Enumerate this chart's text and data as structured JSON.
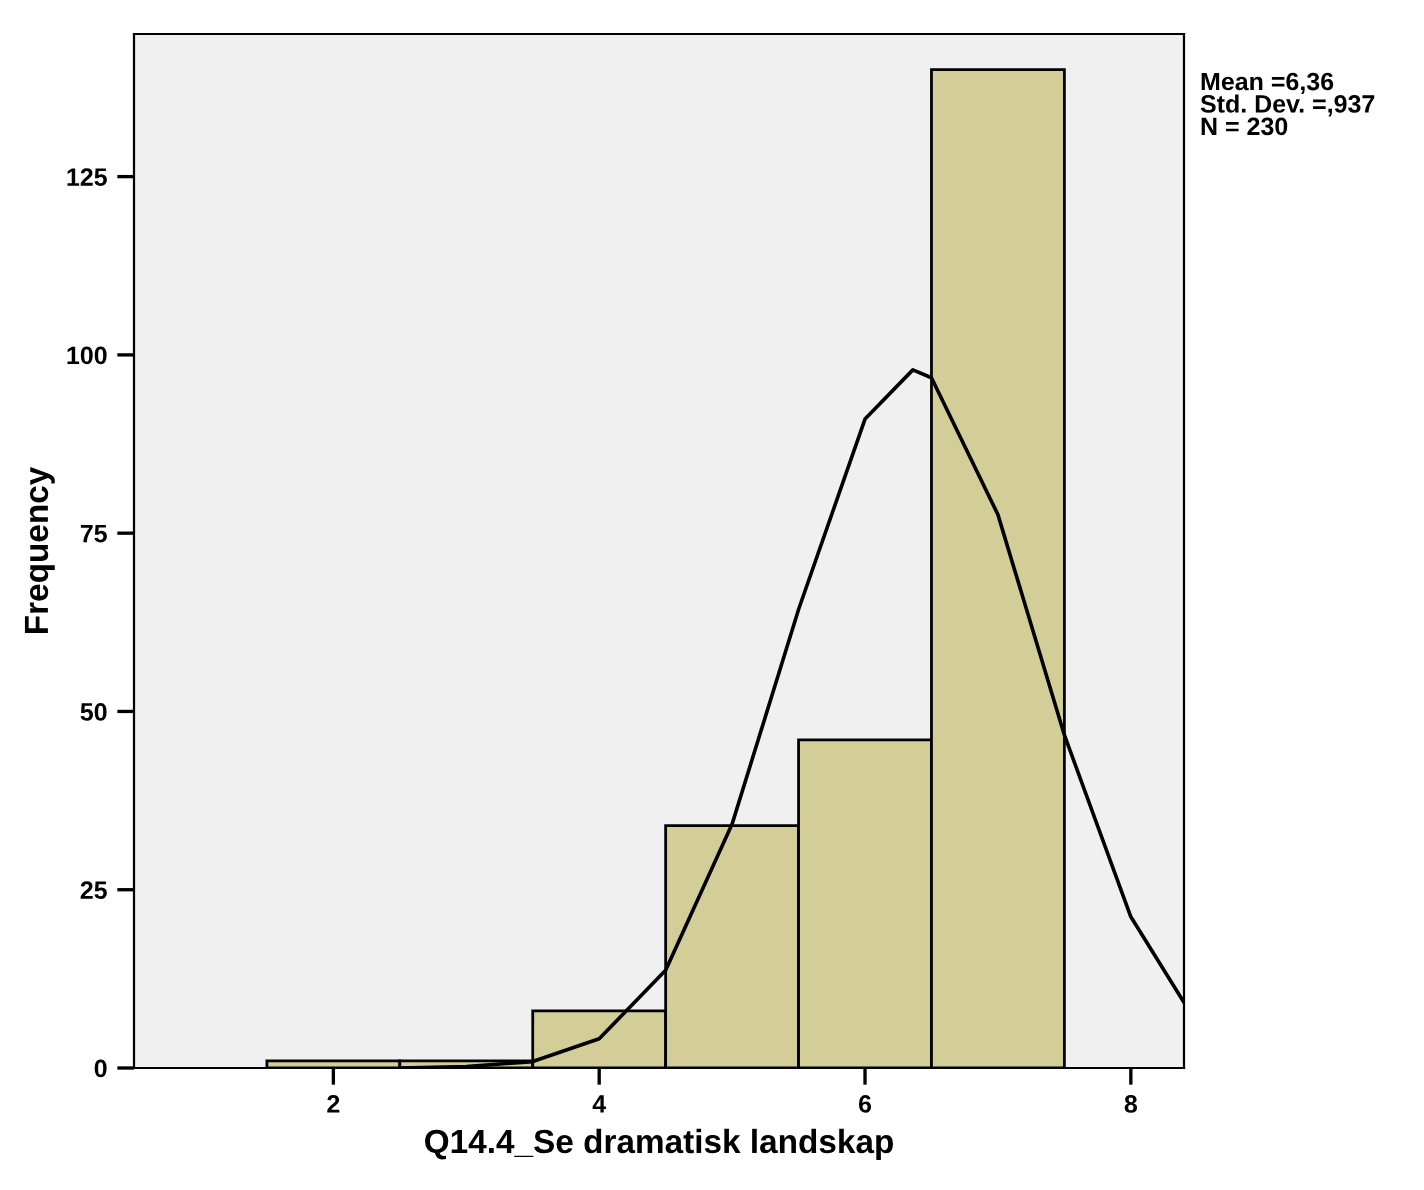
{
  "chart_data": {
    "type": "histogram",
    "xlabel": "Q14.4_Se dramatisk landskap",
    "ylabel": "Frequency",
    "bins": [
      1.5,
      2.5,
      3.5,
      4.5,
      5.5,
      6.5,
      7.5
    ],
    "values": [
      1,
      1,
      8,
      34,
      46,
      140
    ],
    "color": "#d3ce97",
    "series": [
      {
        "type": "line",
        "color": "#000000",
        "x": [
          2.5,
          3,
          3.5,
          4,
          4.5,
          5,
          5.5,
          6,
          6.36,
          6.5,
          7,
          7.5,
          8,
          8.4
        ],
        "values": [
          0,
          0.2,
          0.9,
          4.1,
          13.7,
          34.2,
          64.3,
          91.0,
          97.9,
          96.8,
          77.6,
          46.7,
          21.2,
          9.2
        ]
      }
    ],
    "xlim": [
      0.5,
      8.4
    ],
    "ylim": [
      0,
      145
    ],
    "xticks": [
      2,
      4,
      6,
      8
    ],
    "yticks": [
      0,
      25,
      50,
      75,
      100,
      125
    ],
    "annotations": [
      "Mean =6,36\nStd. Dev. =,937\nN = 230"
    ],
    "grid": false,
    "legend": false
  }
}
